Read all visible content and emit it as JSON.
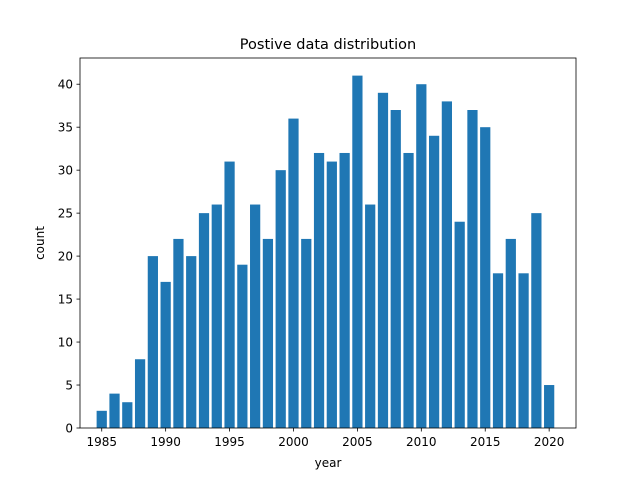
{
  "chart_data": {
    "type": "bar",
    "title": "Postive data distribution",
    "xlabel": "year",
    "ylabel": "count",
    "x": [
      1985,
      1986,
      1987,
      1988,
      1989,
      1990,
      1991,
      1992,
      1993,
      1994,
      1995,
      1996,
      1997,
      1998,
      1999,
      2000,
      2001,
      2002,
      2003,
      2004,
      2005,
      2006,
      2007,
      2008,
      2009,
      2010,
      2011,
      2012,
      2013,
      2014,
      2015,
      2016,
      2017,
      2018,
      2019,
      2020
    ],
    "values": [
      2,
      4,
      3,
      8,
      20,
      17,
      22,
      20,
      25,
      26,
      31,
      19,
      26,
      22,
      30,
      36,
      22,
      32,
      31,
      32,
      41,
      26,
      39,
      37,
      32,
      40,
      34,
      38,
      24,
      37,
      35,
      18,
      22,
      18,
      25,
      5
    ],
    "xticks": [
      1985,
      1990,
      1995,
      2000,
      2005,
      2010,
      2015,
      2020
    ],
    "yticks": [
      0,
      5,
      10,
      15,
      20,
      25,
      30,
      35,
      40
    ],
    "xlim": [
      1983.3,
      2022.1
    ],
    "ylim": [
      0,
      43.05
    ],
    "grid": false,
    "color": "#1f77b4"
  }
}
